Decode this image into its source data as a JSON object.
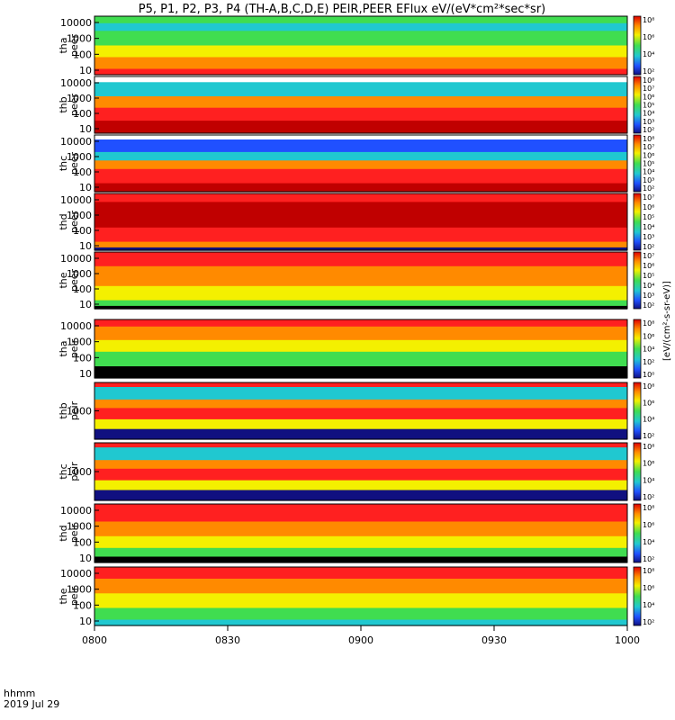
{
  "chart_data": {
    "type": "heatmap",
    "title": "P5, P1, P2, P3, P4 (TH-A,B,C,D,E) PEIR,PEER EFlux eV/(eV*cm²*sec*sr)",
    "x_label_lines": [
      "hhmm",
      "2019 Jul 29"
    ],
    "x_ticks": [
      "0800",
      "0830",
      "0900",
      "0930",
      "1000"
    ],
    "x_range": [
      "08:00",
      "10:00"
    ],
    "colorbar_units": "[eV/(cm²-s-sr-eV)]",
    "colors": {
      "deep_red": "#c00000",
      "red": "#ff2020",
      "orange": "#ff8a00",
      "yellow": "#f4f000",
      "green": "#40dd50",
      "cyan": "#20c8d0",
      "blue": "#2050ff",
      "navy": "#101080",
      "black": "#000000"
    },
    "panels": [
      {
        "id": "tha-peer",
        "label": [
          "tha",
          "peer"
        ],
        "y_ticks": [
          "10",
          "100",
          "1000",
          "10000"
        ],
        "y_scale": "log",
        "colorbar_ticks": [
          "10²",
          "10⁴",
          "10⁶",
          "10⁸"
        ]
      },
      {
        "id": "thb-peer",
        "label": [
          "thb",
          "peer"
        ],
        "y_ticks": [
          "10",
          "100",
          "1000",
          "10000"
        ],
        "y_scale": "log",
        "colorbar_ticks": [
          "10²",
          "10³",
          "10⁴",
          "10⁵",
          "10⁶",
          "10⁷",
          "10⁸"
        ]
      },
      {
        "id": "thc-peer",
        "label": [
          "thc",
          "peer"
        ],
        "y_ticks": [
          "10",
          "100",
          "1000",
          "10000"
        ],
        "y_scale": "log",
        "colorbar_ticks": [
          "10²",
          "10³",
          "10⁴",
          "10⁵",
          "10⁶",
          "10⁷",
          "10⁸"
        ]
      },
      {
        "id": "thd-peer",
        "label": [
          "thd",
          "peer"
        ],
        "y_ticks": [
          "10",
          "100",
          "1000",
          "10000"
        ],
        "y_scale": "log",
        "colorbar_ticks": [
          "10²",
          "10³",
          "10⁴",
          "10⁵",
          "10⁶",
          "10⁷"
        ]
      },
      {
        "id": "the-peer",
        "label": [
          "the",
          "peer"
        ],
        "y_ticks": [
          "10",
          "100",
          "1000",
          "10000"
        ],
        "y_scale": "log",
        "colorbar_ticks": [
          "10²",
          "10³",
          "10⁴",
          "10⁵",
          "10⁶",
          "10⁷"
        ]
      },
      {
        "id": "tha-peir",
        "label": [
          "tha",
          "peir"
        ],
        "y_ticks": [
          "10",
          "100",
          "1000",
          "10000"
        ],
        "y_scale": "log",
        "colorbar_ticks": [
          "10⁰",
          "10²",
          "10⁴",
          "10⁶",
          "10⁸"
        ]
      },
      {
        "id": "thb-peir",
        "label": [
          "thb",
          "peir"
        ],
        "y_ticks": [
          "1000"
        ],
        "y_scale": "log",
        "colorbar_ticks": [
          "10²",
          "10⁴",
          "10⁶",
          "10⁸"
        ]
      },
      {
        "id": "thc-peir",
        "label": [
          "thc",
          "peir"
        ],
        "y_ticks": [
          "1000"
        ],
        "y_scale": "log",
        "colorbar_ticks": [
          "10²",
          "10⁴",
          "10⁶",
          "10⁸"
        ]
      },
      {
        "id": "thd-peir",
        "label": [
          "thd",
          "peir"
        ],
        "y_ticks": [
          "10",
          "100",
          "1000",
          "10000"
        ],
        "y_scale": "log",
        "colorbar_ticks": [
          "10²",
          "10⁴",
          "10⁶",
          "10⁸"
        ]
      },
      {
        "id": "the-peir",
        "label": [
          "the",
          "peir"
        ],
        "y_ticks": [
          "10",
          "100",
          "1000",
          "10000"
        ],
        "y_scale": "log",
        "colorbar_ticks": [
          "10²",
          "10⁴",
          "10⁶",
          "10⁸"
        ]
      }
    ]
  }
}
